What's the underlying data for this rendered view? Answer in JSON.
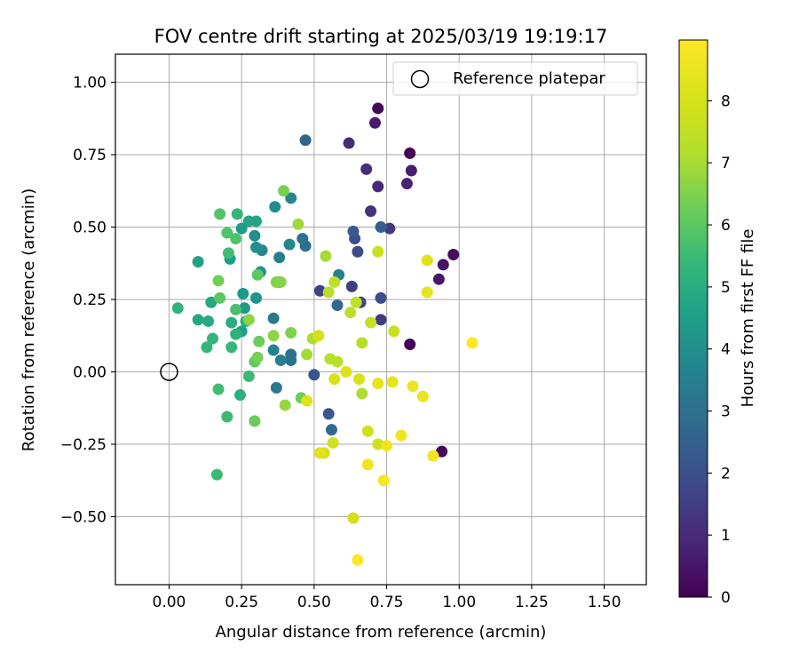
{
  "chart_data": {
    "type": "scatter",
    "title": "FOV centre drift starting at 2025/03/19 19:19:17",
    "xlabel": "Angular distance from reference (arcmin)",
    "ylabel": "Rotation from reference (arcmin)",
    "xlim": [
      -0.185,
      1.645
    ],
    "ylim": [
      -0.735,
      1.097
    ],
    "xticks": [
      0.0,
      0.25,
      0.5,
      0.75,
      1.0,
      1.25,
      1.5
    ],
    "xtick_labels": [
      "0.00",
      "0.25",
      "0.50",
      "0.75",
      "1.00",
      "1.25",
      "1.50"
    ],
    "yticks": [
      -0.5,
      -0.25,
      0.0,
      0.25,
      0.5,
      0.75,
      1.0
    ],
    "ytick_labels": [
      "−0.50",
      "−0.25",
      "0.00",
      "0.25",
      "0.50",
      "0.75",
      "1.00"
    ],
    "grid": true,
    "legend": {
      "position": "upper right",
      "entries": [
        "Reference platepar"
      ]
    },
    "colorbar": {
      "label": "Hours from first FF file",
      "range": [
        0,
        8.98
      ],
      "ticks": [
        0,
        1,
        2,
        3,
        4,
        5,
        6,
        7,
        8
      ],
      "tick_labels": [
        "0",
        "1",
        "2",
        "3",
        "4",
        "5",
        "6",
        "7",
        "8"
      ],
      "colormap": "viridis"
    },
    "reference_point": {
      "x": 0.0,
      "y": 0.0
    },
    "points": [
      {
        "x": 0.83,
        "y": 0.755,
        "c": 0.05
      },
      {
        "x": 0.83,
        "y": 0.095,
        "c": 0.1
      },
      {
        "x": 0.72,
        "y": 0.91,
        "c": 0.15
      },
      {
        "x": 0.94,
        "y": -0.275,
        "c": 0.2
      },
      {
        "x": 0.98,
        "y": 0.405,
        "c": 0.3
      },
      {
        "x": 0.945,
        "y": 0.37,
        "c": 0.4
      },
      {
        "x": 0.93,
        "y": 0.32,
        "c": 0.5
      },
      {
        "x": 0.71,
        "y": 0.86,
        "c": 0.6
      },
      {
        "x": 0.835,
        "y": 0.695,
        "c": 0.7
      },
      {
        "x": 0.82,
        "y": 0.65,
        "c": 0.8
      },
      {
        "x": 0.72,
        "y": 0.64,
        "c": 0.9
      },
      {
        "x": 0.62,
        "y": 0.79,
        "c": 1.0
      },
      {
        "x": 0.68,
        "y": 0.7,
        "c": 1.1
      },
      {
        "x": 0.695,
        "y": 0.555,
        "c": 1.2
      },
      {
        "x": 0.76,
        "y": 0.495,
        "c": 1.3
      },
      {
        "x": 0.73,
        "y": 0.18,
        "c": 1.4
      },
      {
        "x": 0.63,
        "y": 0.295,
        "c": 1.5
      },
      {
        "x": 0.52,
        "y": 0.28,
        "c": 1.6
      },
      {
        "x": 0.66,
        "y": 0.24,
        "c": 1.7
      },
      {
        "x": 0.65,
        "y": 0.415,
        "c": 1.8
      },
      {
        "x": 0.73,
        "y": 0.255,
        "c": 1.9
      },
      {
        "x": 0.64,
        "y": 0.46,
        "c": 2.0
      },
      {
        "x": 0.5,
        "y": -0.01,
        "c": 2.1
      },
      {
        "x": 0.55,
        "y": -0.145,
        "c": 2.2
      },
      {
        "x": 0.635,
        "y": 0.485,
        "c": 2.3
      },
      {
        "x": 0.73,
        "y": 0.5,
        "c": 2.4
      },
      {
        "x": 0.47,
        "y": 0.8,
        "c": 2.6
      },
      {
        "x": 0.56,
        "y": -0.2,
        "c": 2.7
      },
      {
        "x": 0.58,
        "y": 0.23,
        "c": 2.8
      },
      {
        "x": 0.47,
        "y": 0.435,
        "c": 2.9
      },
      {
        "x": 0.46,
        "y": 0.46,
        "c": 3.0
      },
      {
        "x": 0.42,
        "y": 0.06,
        "c": 3.1
      },
      {
        "x": 0.42,
        "y": 0.04,
        "c": 3.1
      },
      {
        "x": 0.36,
        "y": 0.185,
        "c": 3.2
      },
      {
        "x": 0.37,
        "y": -0.055,
        "c": 3.3
      },
      {
        "x": 0.38,
        "y": 0.31,
        "c": 3.4
      },
      {
        "x": 0.38,
        "y": 0.395,
        "c": 3.5
      },
      {
        "x": 0.385,
        "y": 0.04,
        "c": 3.5
      },
      {
        "x": 0.36,
        "y": 0.075,
        "c": 3.6
      },
      {
        "x": 0.585,
        "y": 0.335,
        "c": 3.6
      },
      {
        "x": 0.42,
        "y": 0.6,
        "c": 3.7
      },
      {
        "x": 0.415,
        "y": 0.44,
        "c": 3.8
      },
      {
        "x": 0.32,
        "y": 0.42,
        "c": 3.8
      },
      {
        "x": 0.365,
        "y": 0.57,
        "c": 3.9
      },
      {
        "x": 0.3,
        "y": 0.43,
        "c": 4.0
      },
      {
        "x": 0.295,
        "y": 0.47,
        "c": 4.0
      },
      {
        "x": 0.315,
        "y": 0.345,
        "c": 4.1
      },
      {
        "x": 0.3,
        "y": 0.255,
        "c": 4.2
      },
      {
        "x": 0.26,
        "y": 0.22,
        "c": 4.3
      },
      {
        "x": 0.255,
        "y": 0.27,
        "c": 4.3
      },
      {
        "x": 0.25,
        "y": 0.495,
        "c": 4.4
      },
      {
        "x": 0.21,
        "y": 0.39,
        "c": 4.5
      },
      {
        "x": 0.1,
        "y": 0.38,
        "c": 4.6
      },
      {
        "x": 0.25,
        "y": 0.14,
        "c": 4.6
      },
      {
        "x": 0.275,
        "y": 0.52,
        "c": 4.7
      },
      {
        "x": 0.3,
        "y": 0.52,
        "c": 4.7
      },
      {
        "x": 0.145,
        "y": 0.24,
        "c": 4.8
      },
      {
        "x": 0.1,
        "y": 0.18,
        "c": 4.8
      },
      {
        "x": 0.135,
        "y": 0.175,
        "c": 4.9
      },
      {
        "x": 0.265,
        "y": 0.175,
        "c": 5.0
      },
      {
        "x": 0.215,
        "y": 0.17,
        "c": 5.0
      },
      {
        "x": 0.245,
        "y": -0.08,
        "c": 5.1
      },
      {
        "x": 0.23,
        "y": 0.13,
        "c": 5.2
      },
      {
        "x": 0.03,
        "y": 0.22,
        "c": 5.2
      },
      {
        "x": 0.15,
        "y": 0.115,
        "c": 5.3
      },
      {
        "x": 0.13,
        "y": 0.085,
        "c": 5.3
      },
      {
        "x": 0.215,
        "y": 0.085,
        "c": 5.4
      },
      {
        "x": 0.235,
        "y": 0.545,
        "c": 5.4
      },
      {
        "x": 0.275,
        "y": -0.015,
        "c": 5.5
      },
      {
        "x": 0.165,
        "y": -0.355,
        "c": 5.5
      },
      {
        "x": 0.2,
        "y": -0.155,
        "c": 5.5
      },
      {
        "x": 0.205,
        "y": 0.41,
        "c": 5.6
      },
      {
        "x": 0.17,
        "y": -0.06,
        "c": 5.6
      },
      {
        "x": 0.23,
        "y": 0.215,
        "c": 5.7
      },
      {
        "x": 0.23,
        "y": 0.46,
        "c": 5.8
      },
      {
        "x": 0.2,
        "y": 0.48,
        "c": 5.8
      },
      {
        "x": 0.175,
        "y": 0.545,
        "c": 5.9
      },
      {
        "x": 0.175,
        "y": 0.255,
        "c": 6.0
      },
      {
        "x": 0.305,
        "y": 0.335,
        "c": 6.0
      },
      {
        "x": 0.295,
        "y": 0.035,
        "c": 6.1
      },
      {
        "x": 0.295,
        "y": -0.17,
        "c": 6.2
      },
      {
        "x": 0.31,
        "y": 0.105,
        "c": 6.2
      },
      {
        "x": 0.17,
        "y": 0.315,
        "c": 6.3
      },
      {
        "x": 0.455,
        "y": -0.09,
        "c": 6.3
      },
      {
        "x": 0.395,
        "y": 0.625,
        "c": 6.4
      },
      {
        "x": 0.305,
        "y": 0.05,
        "c": 6.4
      },
      {
        "x": 0.42,
        "y": 0.135,
        "c": 6.5
      },
      {
        "x": 0.37,
        "y": 0.31,
        "c": 6.5
      },
      {
        "x": 0.385,
        "y": 0.31,
        "c": 6.6
      },
      {
        "x": 0.275,
        "y": 0.18,
        "c": 6.6
      },
      {
        "x": 0.36,
        "y": 0.125,
        "c": 6.7
      },
      {
        "x": 0.4,
        "y": -0.115,
        "c": 6.8
      },
      {
        "x": 0.445,
        "y": 0.51,
        "c": 6.9
      },
      {
        "x": 0.475,
        "y": 0.06,
        "c": 7.0
      },
      {
        "x": 0.54,
        "y": 0.4,
        "c": 7.0
      },
      {
        "x": 0.495,
        "y": 0.115,
        "c": 7.1
      },
      {
        "x": 0.665,
        "y": -0.075,
        "c": 7.1
      },
      {
        "x": 0.665,
        "y": 0.1,
        "c": 7.2
      },
      {
        "x": 0.55,
        "y": 0.275,
        "c": 7.2
      },
      {
        "x": 0.58,
        "y": 0.035,
        "c": 7.3
      },
      {
        "x": 0.555,
        "y": 0.045,
        "c": 7.3
      },
      {
        "x": 0.57,
        "y": 0.31,
        "c": 7.4
      },
      {
        "x": 0.625,
        "y": 0.205,
        "c": 7.4
      },
      {
        "x": 0.645,
        "y": 0.24,
        "c": 7.5
      },
      {
        "x": 0.695,
        "y": 0.17,
        "c": 7.6
      },
      {
        "x": 0.72,
        "y": 0.415,
        "c": 7.7
      },
      {
        "x": 0.775,
        "y": 0.14,
        "c": 7.7
      },
      {
        "x": 0.685,
        "y": -0.205,
        "c": 7.8
      },
      {
        "x": 0.72,
        "y": -0.25,
        "c": 7.8
      },
      {
        "x": 0.635,
        "y": -0.505,
        "c": 7.9
      },
      {
        "x": 0.565,
        "y": -0.245,
        "c": 7.9
      },
      {
        "x": 0.515,
        "y": 0.125,
        "c": 8.0
      },
      {
        "x": 0.535,
        "y": -0.28,
        "c": 8.0
      },
      {
        "x": 0.57,
        "y": -0.025,
        "c": 8.1
      },
      {
        "x": 0.655,
        "y": -0.025,
        "c": 8.1
      },
      {
        "x": 0.61,
        "y": 0.0,
        "c": 8.2
      },
      {
        "x": 0.475,
        "y": -0.1,
        "c": 8.2
      },
      {
        "x": 0.52,
        "y": -0.28,
        "c": 8.3
      },
      {
        "x": 0.89,
        "y": 0.385,
        "c": 8.3
      },
      {
        "x": 0.89,
        "y": 0.275,
        "c": 8.4
      },
      {
        "x": 0.77,
        "y": -0.035,
        "c": 8.4
      },
      {
        "x": 0.72,
        "y": -0.04,
        "c": 8.5
      },
      {
        "x": 0.875,
        "y": -0.085,
        "c": 8.5
      },
      {
        "x": 0.84,
        "y": -0.05,
        "c": 8.6
      },
      {
        "x": 0.8,
        "y": -0.22,
        "c": 8.6
      },
      {
        "x": 0.685,
        "y": -0.32,
        "c": 8.7
      },
      {
        "x": 0.75,
        "y": -0.255,
        "c": 8.7
      },
      {
        "x": 0.74,
        "y": -0.375,
        "c": 8.8
      },
      {
        "x": 0.91,
        "y": -0.29,
        "c": 8.8
      },
      {
        "x": 0.65,
        "y": -0.65,
        "c": 8.9
      },
      {
        "x": 1.045,
        "y": 0.1,
        "c": 8.95
      }
    ]
  }
}
